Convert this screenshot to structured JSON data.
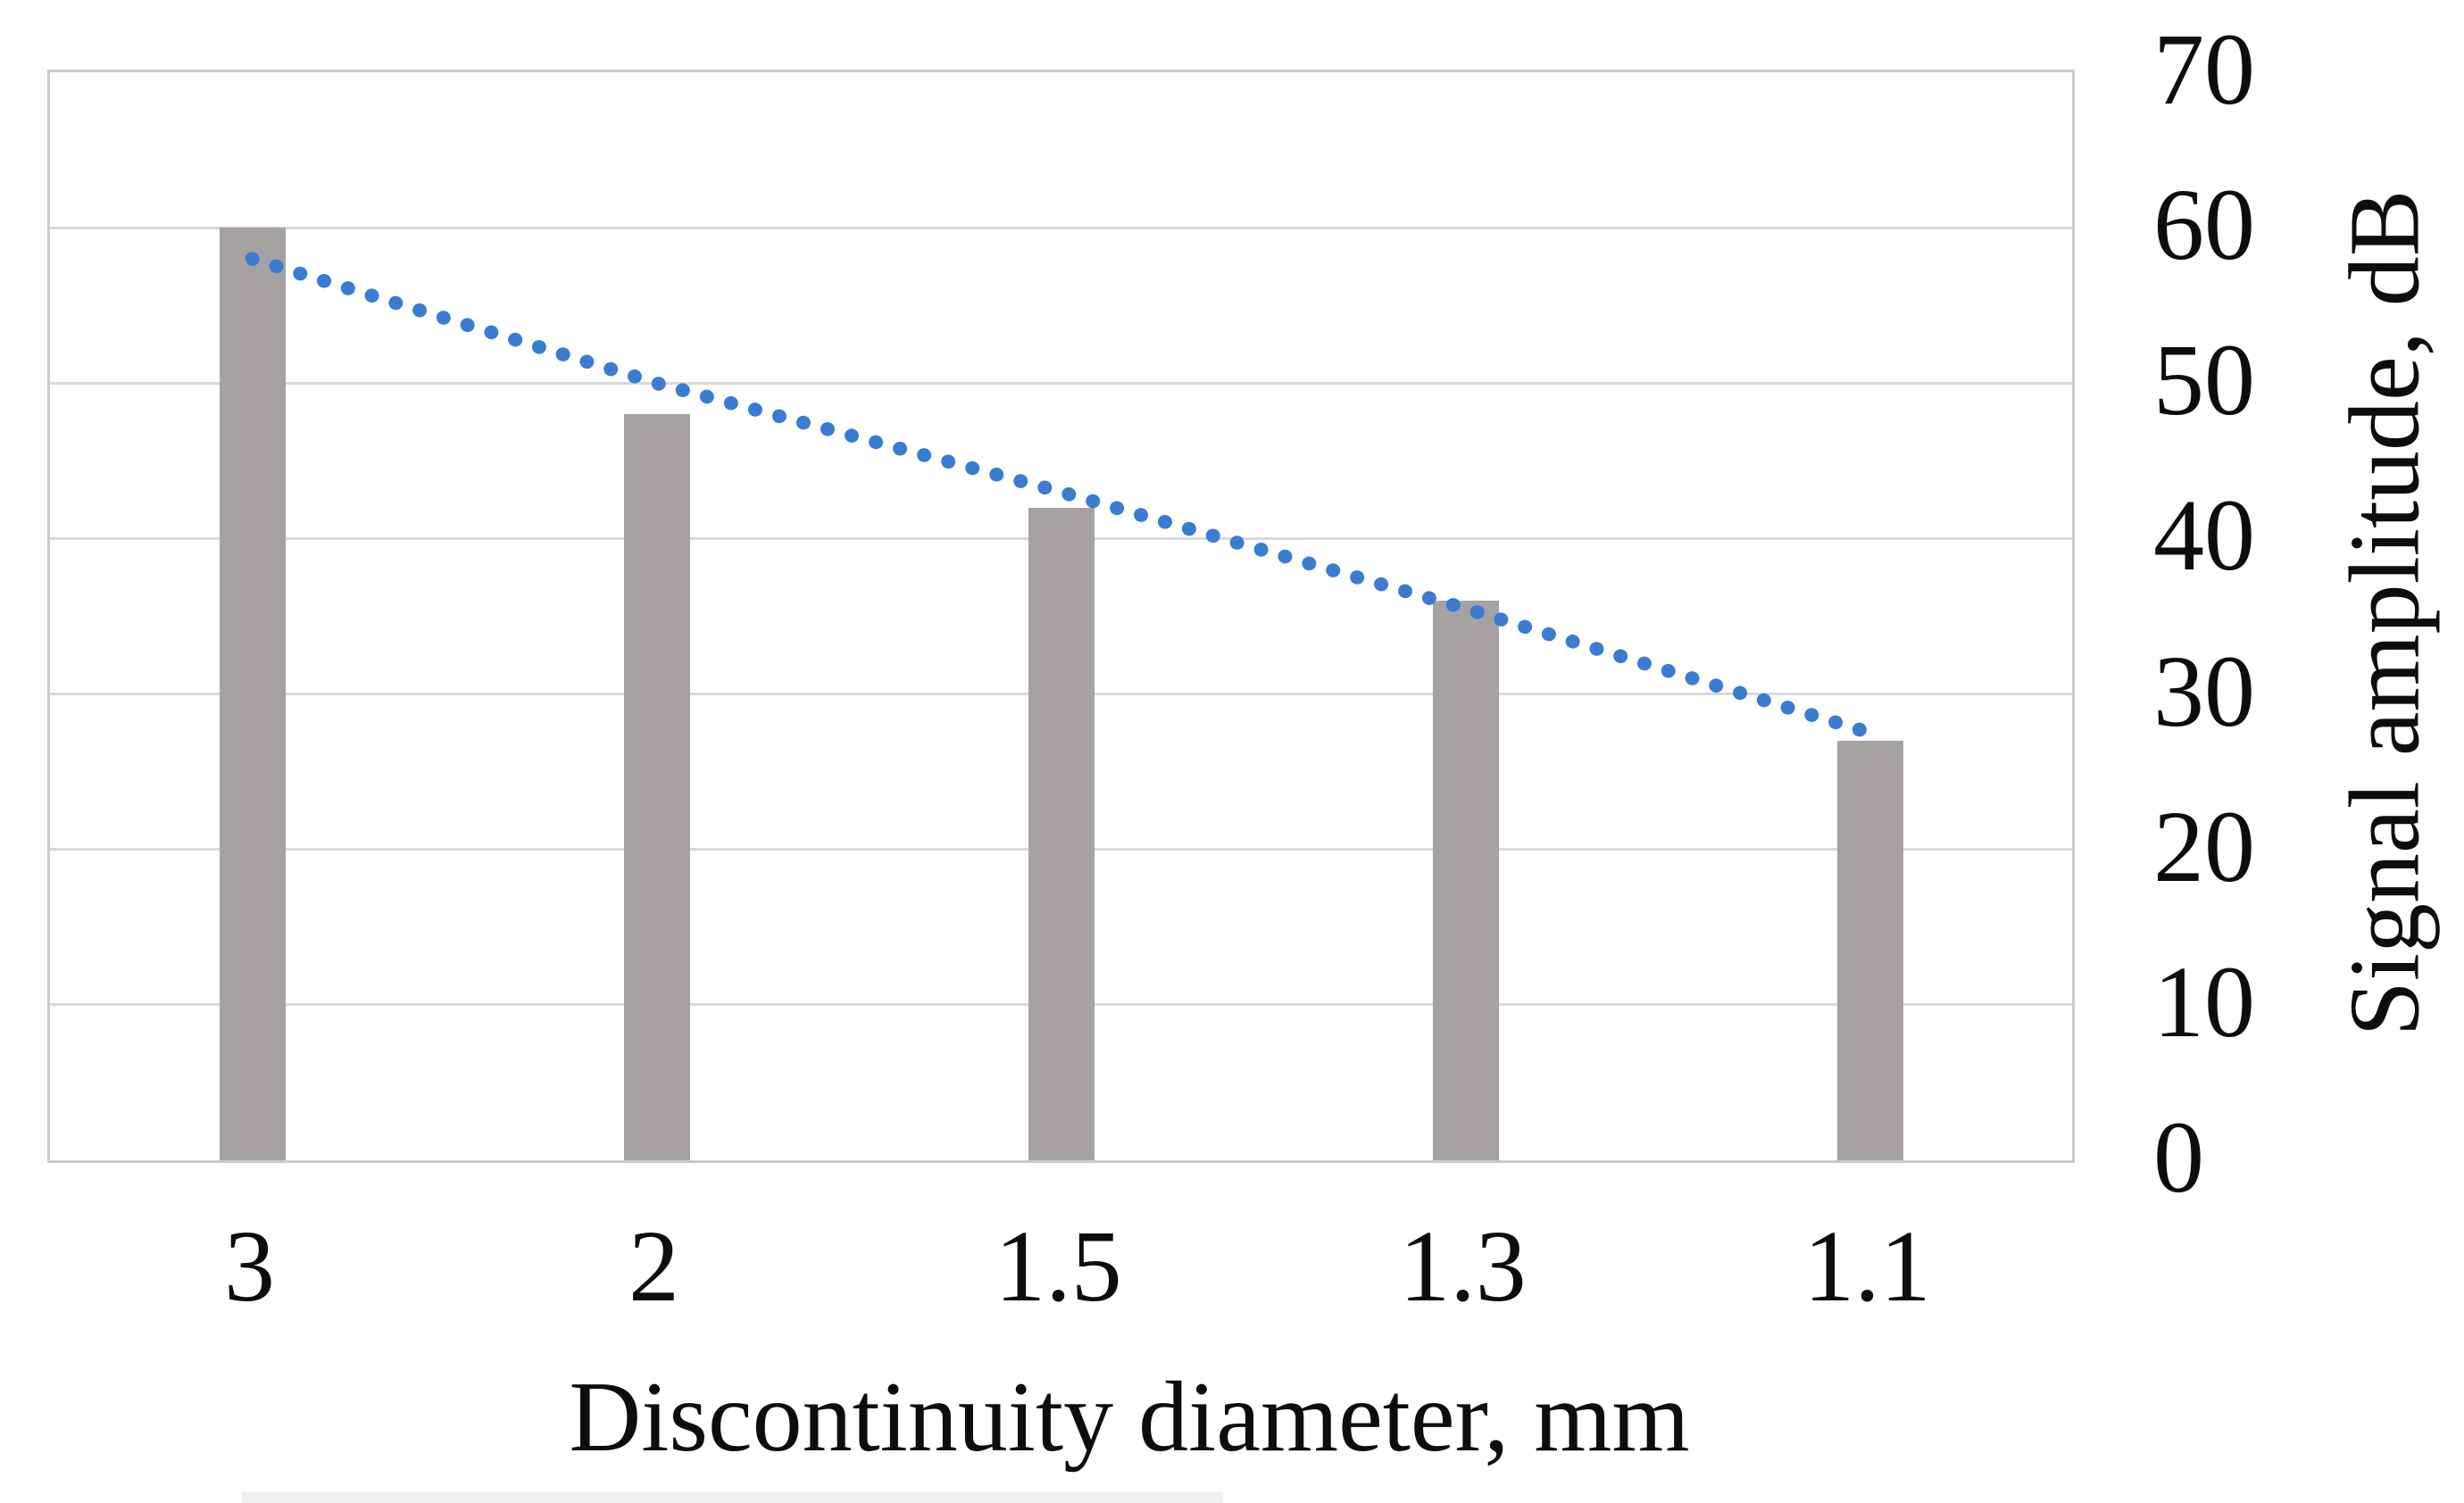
{
  "chart_data": {
    "type": "bar",
    "categories": [
      "3",
      "2",
      "1.5",
      "1.3",
      "1.1"
    ],
    "series": [
      {
        "name": "signal-amplitude-bars",
        "type": "bar",
        "values": [
          60,
          48,
          42,
          36,
          27
        ]
      },
      {
        "name": "trendline",
        "type": "dotted_line",
        "values": [
          58,
          50,
          43,
          35.5,
          27.5
        ]
      }
    ],
    "title": "",
    "xlabel": "Discontinuity diameter, mm",
    "ylabel": "Signal amplitude, dB",
    "ylim": [
      0,
      70
    ],
    "yticks": [
      70,
      60,
      50,
      40,
      30,
      20,
      10,
      0
    ],
    "grid": true,
    "legend": false,
    "colors": {
      "bar": "#a6a2a2",
      "trend_dots": "#3b7cd3",
      "gridline": "#d9d9d9",
      "plot_border": "#cbcbcb",
      "text": "#0d0d0d",
      "background": "#ffffff"
    }
  }
}
